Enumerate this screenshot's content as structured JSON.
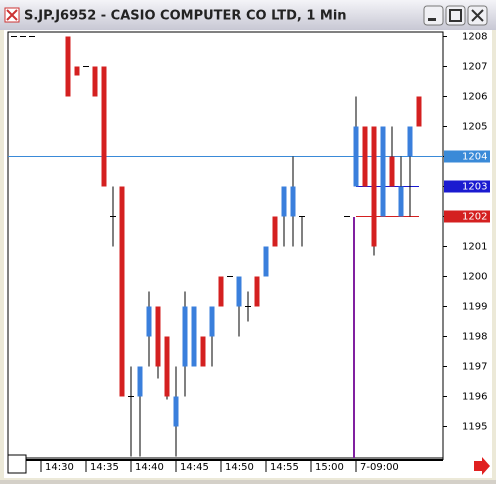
{
  "window_title": "S.JP.J6952 - CASIO COMPUTER CO LTD, 1 Min",
  "chart_data": {
    "type": "candlestick",
    "categories": [
      null,
      null,
      null,
      null,
      "14:30",
      null,
      null,
      null,
      null,
      "14:35",
      null,
      null,
      null,
      null,
      "14:40",
      null,
      null,
      null,
      null,
      "14:45",
      null,
      null,
      null,
      null,
      "14:50",
      null,
      null,
      null,
      null,
      "14:55",
      null,
      null,
      null,
      null,
      "15:00",
      null,
      null,
      null,
      null,
      "7-09:00",
      null,
      null,
      null,
      null,
      null,
      null,
      null
    ],
    "open": [
      null,
      1208,
      1208,
      1208,
      null,
      null,
      null,
      1208,
      1207,
      1207,
      1207,
      1207,
      1202,
      1203,
      1196,
      1196,
      1198,
      1199,
      1198,
      1195,
      1197,
      1197,
      1198,
      1198,
      1200,
      1200,
      1199,
      1199,
      1200,
      1200,
      1202,
      1202,
      1202,
      1202,
      null,
      null,
      null,
      null,
      1202,
      1203,
      1205,
      1205,
      1202,
      1204,
      1202,
      1204,
      1206
    ],
    "high": [
      null,
      1208,
      1208,
      1208,
      null,
      null,
      null,
      1208,
      1207,
      1207,
      1207,
      1207,
      1203,
      1203,
      1197,
      1197,
      1199.5,
      1199,
      1198,
      1197,
      1199.5,
      1199,
      1198,
      1199,
      1200,
      1200,
      1200,
      1199.5,
      1200,
      1201,
      1202,
      1203,
      1204,
      1202,
      null,
      null,
      null,
      null,
      1202,
      1206,
      1205,
      1205,
      1205,
      1205,
      1204,
      1205,
      1206
    ],
    "low": [
      null,
      1208,
      1208,
      1208,
      null,
      null,
      null,
      1206,
      1206.7,
      1207,
      1206,
      1203,
      1201,
      1196,
      1194,
      1194,
      1197,
      1196.6,
      1195.9,
      1194,
      1196,
      1197,
      1197,
      1197,
      1199,
      1200,
      1198,
      1198.5,
      1199,
      1200,
      1201,
      1201,
      1201,
      1201,
      null,
      null,
      null,
      null,
      1202,
      1203,
      1203,
      1200.7,
      1202,
      1203,
      1202,
      1202,
      1205
    ],
    "close": [
      null,
      1208,
      1208,
      1208,
      null,
      null,
      null,
      1206,
      1206.7,
      1207,
      1206,
      1203,
      1202,
      1196,
      1196,
      1197,
      1199,
      1197,
      1196,
      1196,
      1199,
      1199,
      1197,
      1199,
      1199,
      1200,
      1200,
      1199,
      1199,
      1201,
      1201,
      1203,
      1203,
      1202,
      null,
      null,
      null,
      null,
      1202,
      1205,
      1203,
      1201,
      1205,
      1203,
      1203,
      1205,
      1205
    ],
    "up_color": "#3a7fdc",
    "down_color": "#d42020",
    "ylim": [
      1193.95,
      1208.15
    ],
    "yticks": [
      1208,
      1207,
      1206,
      1205,
      1204,
      1203,
      1202,
      1201,
      1200,
      1199,
      1198,
      1197,
      1196,
      1195
    ],
    "price_lines": [
      {
        "value": 1204,
        "color": "#3a8ad8"
      },
      {
        "value": 1203,
        "color": "#1a1ad0"
      },
      {
        "value": 1202,
        "color": "#d42020"
      }
    ]
  }
}
